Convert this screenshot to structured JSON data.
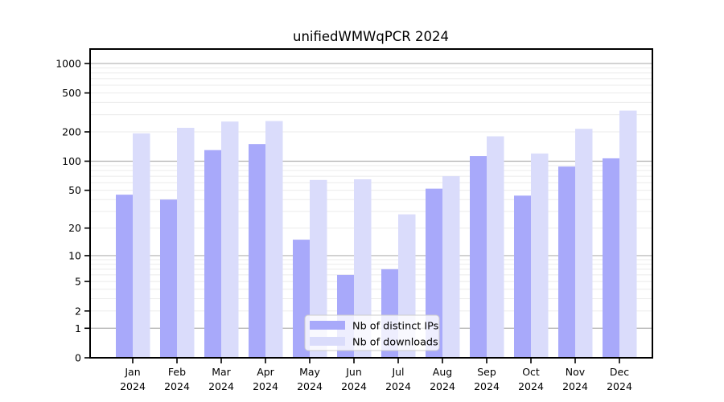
{
  "chart_data": {
    "type": "bar",
    "title": "unifiedWMWqPCR 2024",
    "categories": [
      "Jan",
      "Feb",
      "Mar",
      "Apr",
      "May",
      "Jun",
      "Jul",
      "Aug",
      "Sep",
      "Oct",
      "Nov",
      "Dec"
    ],
    "year_label": "2024",
    "series": [
      {
        "name": "Nb of distinct IPs",
        "color": "#a8a9fa",
        "values": [
          45,
          40,
          130,
          150,
          15,
          6,
          7,
          52,
          113,
          44,
          88,
          107
        ]
      },
      {
        "name": "Nb of downloads",
        "color": "#dadcfb",
        "values": [
          193,
          220,
          255,
          258,
          64,
          65,
          28,
          70,
          180,
          120,
          215,
          330
        ]
      }
    ],
    "yscale": "log1p",
    "yticks": [
      1000,
      500,
      200,
      100,
      50,
      20,
      10,
      5,
      2,
      1,
      0
    ],
    "ylim": [
      0,
      1400
    ],
    "grid": {
      "major_lines": [
        1,
        10,
        100,
        1000
      ],
      "major_color": "#b0b0b0",
      "minor_color": "#ebebeb"
    },
    "legend_position": "lower center"
  }
}
